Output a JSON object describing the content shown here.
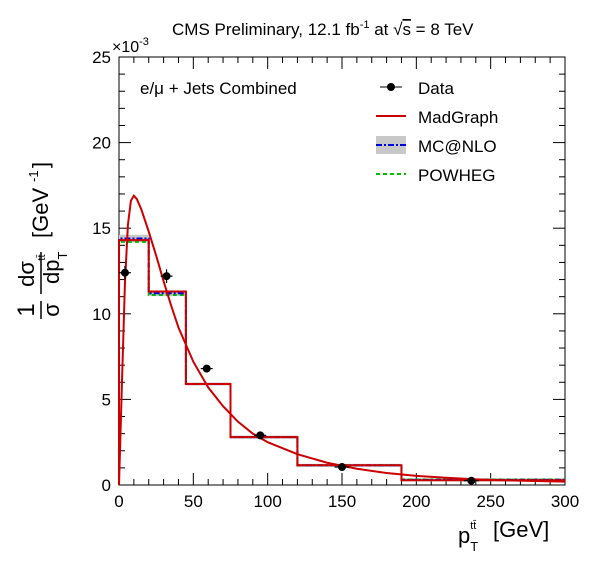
{
  "chart_data": {
    "type": "line",
    "title_main": "CMS Preliminary, 12.1 fb",
    "title_exp": "-1",
    "title_at": " at ",
    "title_sqrt": "s",
    "title_energy": " = 8 TeV",
    "channel_label": "e/μ + Jets Combined",
    "x_label": "[GeV]",
    "y_label": "[GeV",
    "y_label_exp": "-1",
    "y_multiplier": "×10",
    "y_multiplier_exp": "-3",
    "x_range": [
      0,
      300
    ],
    "y_range": [
      0,
      0.025
    ],
    "x_ticks": [
      "0",
      "50",
      "100",
      "150",
      "200",
      "250",
      "300"
    ],
    "y_ticks": [
      "0",
      "5",
      "10",
      "15",
      "20",
      "25"
    ],
    "legend": {
      "data": "Data",
      "madgraph": "MadGraph",
      "mcatnlo": "MC@NLO",
      "powheg": "POWHEG"
    },
    "colors": {
      "madgraph": "#cc0000",
      "mcatnlo": "#0000dd",
      "mcatnlo_band": "#c8c8c8",
      "powheg": "#00bb00",
      "data": "#000000"
    },
    "bin_edges": [
      0,
      20,
      45,
      75,
      120,
      190,
      300
    ],
    "madgraph_hist": [
      0.0143,
      0.0113,
      0.0059,
      0.0028,
      0.00115,
      0.00028
    ],
    "mcatnlo_hist": [
      0.0144,
      0.0112,
      0.0059,
      0.0028,
      0.00115,
      0.0003
    ],
    "powheg_hist": [
      0.0142,
      0.0111,
      0.0059,
      0.0028,
      0.00115,
      0.00032
    ],
    "data_points": [
      {
        "x": 4,
        "y": 0.0124,
        "xerr": 4,
        "yerr": 0.0004
      },
      {
        "x": 32,
        "y": 0.0122,
        "xerr": 4,
        "yerr": 0.0004
      },
      {
        "x": 59,
        "y": 0.0068,
        "xerr": 4,
        "yerr": 0.0002
      },
      {
        "x": 95,
        "y": 0.0029,
        "xerr": 4,
        "yerr": 0.0001
      },
      {
        "x": 150,
        "y": 0.00105,
        "xerr": 5,
        "yerr": 5e-05
      },
      {
        "x": 237,
        "y": 0.00025,
        "xerr": 5,
        "yerr": 2e-05
      }
    ],
    "madgraph_curve": [
      [
        0,
        0.0
      ],
      [
        2,
        0.006
      ],
      [
        4,
        0.0118
      ],
      [
        6,
        0.0152
      ],
      [
        8,
        0.0166
      ],
      [
        10,
        0.0169
      ],
      [
        12,
        0.0167
      ],
      [
        15,
        0.0161
      ],
      [
        20,
        0.0148
      ],
      [
        25,
        0.0134
      ],
      [
        30,
        0.0119
      ],
      [
        35,
        0.0105
      ],
      [
        40,
        0.0092
      ],
      [
        50,
        0.0072
      ],
      [
        60,
        0.0057
      ],
      [
        70,
        0.0046
      ],
      [
        80,
        0.0037
      ],
      [
        90,
        0.003
      ],
      [
        100,
        0.0025
      ],
      [
        120,
        0.0018
      ],
      [
        140,
        0.0013
      ],
      [
        160,
        0.00095
      ],
      [
        180,
        0.0007
      ],
      [
        200,
        0.00053
      ],
      [
        220,
        0.00042
      ],
      [
        240,
        0.00033
      ],
      [
        260,
        0.00027
      ],
      [
        280,
        0.00023
      ],
      [
        300,
        0.0002
      ]
    ]
  }
}
